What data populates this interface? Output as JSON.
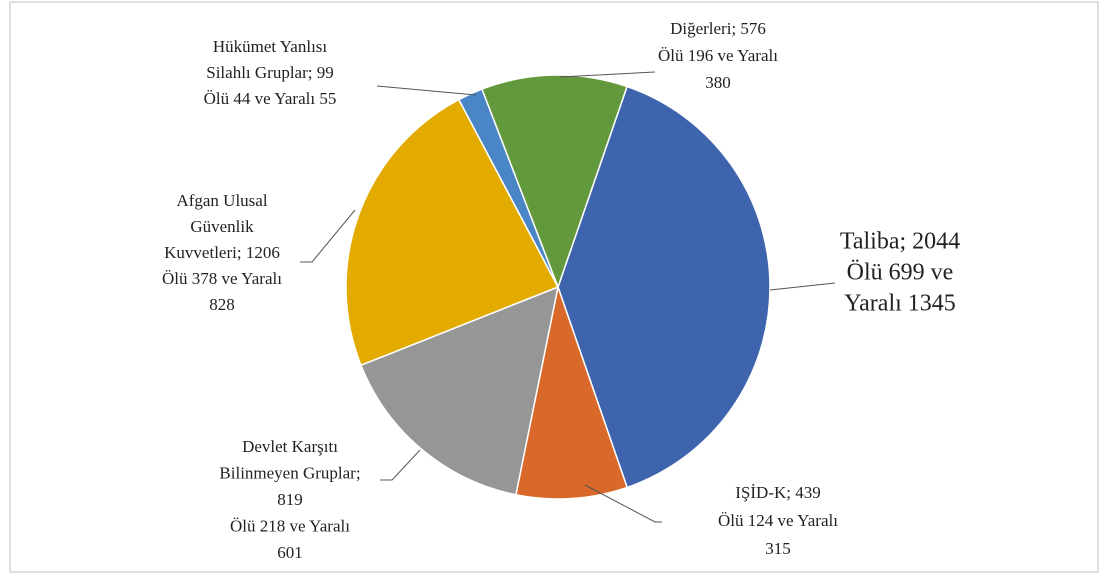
{
  "chart_data": {
    "type": "pie",
    "values": [
      2044,
      439,
      819,
      1206,
      99,
      576
    ],
    "value_labels": [
      [
        "Taliba; 2044",
        "Ölü 699 ve",
        "Yaralı 1345"
      ],
      [
        "IŞİD-K; 439",
        "Ölü 124 ve Yaralı",
        "315"
      ],
      [
        "Devlet Karşıtı",
        "Bilinmeyen Gruplar;",
        "819",
        "Ölü 218 ve Yaralı",
        "601"
      ],
      [
        "Afgan Ulusal",
        "Güvenlik",
        "Kuvvetleri; 1206",
        "Ölü 378 ve Yaralı",
        "828"
      ],
      [
        "Hükümet Yanlısı",
        "Silahlı Gruplar; 99",
        "Ölü 44 ve Yaralı 55"
      ],
      [
        "Diğerleri; 576",
        "Ölü 196 ve Yaralı",
        "380"
      ]
    ],
    "colors": [
      "#3f64ae",
      "#d9682b",
      "#969696",
      "#e3aa00",
      "#4a86c5",
      "#63993d"
    ],
    "start_angle": 19
  }
}
